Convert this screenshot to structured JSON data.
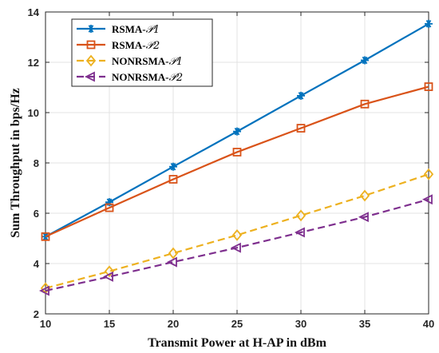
{
  "chart_data": {
    "type": "line",
    "xlabel": "Transmit Power at H-AP in dBm",
    "ylabel": "Sum Throughput in bps/Hz",
    "xlim": [
      10,
      40
    ],
    "ylim": [
      2,
      14
    ],
    "xticks": [
      10,
      15,
      20,
      25,
      30,
      35,
      40
    ],
    "yticks": [
      2,
      4,
      6,
      8,
      10,
      12,
      14
    ],
    "grid": true,
    "legend_position": "top-left",
    "x": [
      10,
      15,
      20,
      25,
      30,
      35,
      40
    ],
    "series": [
      {
        "name": "RSMA-",
        "suffix": "𝒫1",
        "values": [
          5.07,
          6.44,
          7.85,
          9.25,
          10.67,
          12.08,
          13.53
        ],
        "color": "#0072BD",
        "marker": "asterisk",
        "dash": "solid"
      },
      {
        "name": "RSMA-",
        "suffix": "𝒫2",
        "values": [
          5.07,
          6.22,
          7.35,
          8.43,
          9.38,
          10.34,
          11.03
        ],
        "color": "#D95319",
        "marker": "square",
        "dash": "solid"
      },
      {
        "name": "NONRSMA-",
        "suffix": "𝒫1",
        "values": [
          3.02,
          3.69,
          4.41,
          5.13,
          5.91,
          6.7,
          7.55
        ],
        "color": "#EDB120",
        "marker": "diamond",
        "dash": "dashed"
      },
      {
        "name": "NONRSMA-",
        "suffix": "𝒫2",
        "values": [
          2.92,
          3.48,
          4.06,
          4.63,
          5.24,
          5.85,
          6.55
        ],
        "color": "#7E2F8E",
        "marker": "triangle-left",
        "dash": "dashed"
      }
    ]
  }
}
